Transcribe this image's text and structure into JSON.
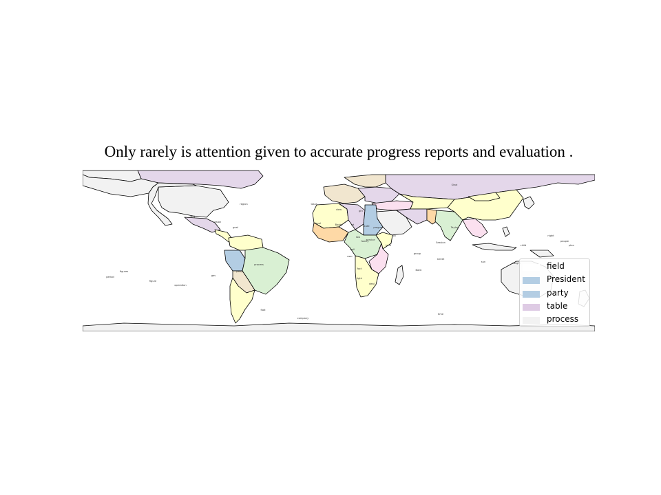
{
  "title": "Only rarely is attention given to accurate progress reports and evaluation .",
  "legend": {
    "items": [
      {
        "label": "field",
        "color": "#ffffff"
      },
      {
        "label": "President",
        "color": "#b3cde3"
      },
      {
        "label": "party",
        "color": "#b3cde3"
      },
      {
        "label": "table",
        "color": "#decbe4"
      },
      {
        "label": "process",
        "color": "#f2f2f2"
      }
    ]
  },
  "palette": {
    "purple": "#e4d7ea",
    "yellow": "#ffffcc",
    "green": "#d9f0d3",
    "blue": "#b3cde3",
    "grey": "#f2f2f2",
    "beige": "#f1e6cf",
    "pink": "#fbe0ef",
    "orange": "#fed9a6",
    "border": "#000000",
    "ocean": "#ffffff"
  },
  "map_labels": [
    "region",
    "way",
    "vision",
    "goal",
    "Gaza",
    "level",
    "view",
    "girl",
    "Books",
    "lot",
    "state",
    "program",
    "job",
    "law",
    "service",
    "ball",
    "user",
    "family",
    "land",
    "Sinai",
    "Session",
    "group",
    "street",
    "night",
    "child",
    "sun",
    "weight",
    "fact",
    "Bank",
    "operation",
    "figure",
    "period",
    "process",
    "party",
    "gas",
    "figures",
    "foot",
    "company",
    "time",
    "light",
    "deal",
    "people",
    "plan",
    "Taylor"
  ]
}
